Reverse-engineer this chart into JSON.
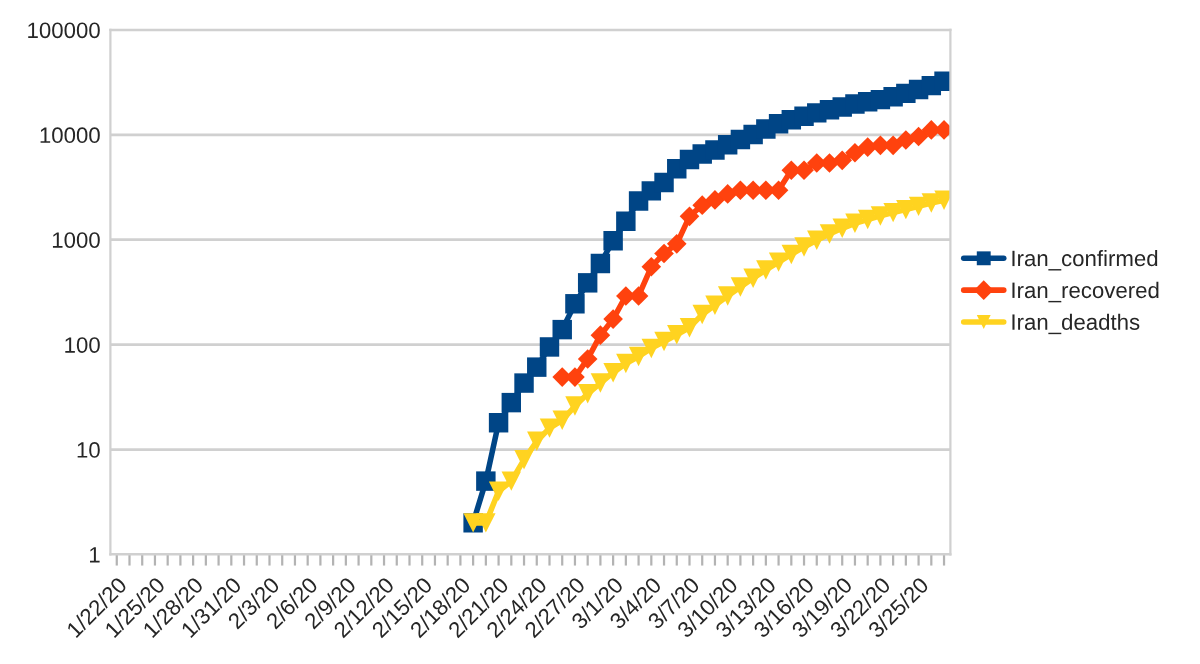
{
  "chart_data": {
    "type": "line",
    "log": "y",
    "grid": "y",
    "legend": "right",
    "line_style": "solid",
    "categories": [
      "1/22/20",
      null,
      null,
      "1/25/20",
      null,
      null,
      "1/28/20",
      null,
      null,
      "1/31/20",
      null,
      null,
      "2/3/20",
      null,
      null,
      "2/6/20",
      null,
      null,
      "2/9/20",
      null,
      null,
      "2/12/20",
      null,
      null,
      "2/15/20",
      null,
      null,
      "2/18/20",
      null,
      null,
      "2/21/20",
      null,
      null,
      "2/24/20",
      null,
      null,
      "2/27/20",
      null,
      null,
      "3/1/20",
      null,
      null,
      "3/4/20",
      null,
      null,
      "3/7/20",
      null,
      null,
      "3/10/20",
      null,
      null,
      "3/13/20",
      null,
      null,
      "3/16/20",
      null,
      null,
      "3/19/20",
      null,
      null,
      "3/22/20",
      null,
      null,
      "3/25/20",
      null,
      null
    ],
    "ylim": [
      1,
      100000
    ],
    "yticks": [
      1,
      10,
      100,
      1000,
      10000,
      100000
    ],
    "series": [
      {
        "name": "Iran_confirmed",
        "color": "#004586",
        "marker": "square",
        "values": [
          null,
          null,
          null,
          null,
          null,
          null,
          null,
          null,
          null,
          null,
          null,
          null,
          null,
          null,
          null,
          null,
          null,
          null,
          null,
          null,
          null,
          null,
          null,
          null,
          null,
          null,
          null,
          null,
          2,
          5,
          18,
          28,
          43,
          61,
          95,
          139,
          245,
          388,
          593,
          978,
          1501,
          2336,
          2922,
          3513,
          4747,
          5823,
          6566,
          7161,
          8042,
          9000,
          10075,
          11364,
          12729,
          13938,
          14991,
          16169,
          17361,
          18407,
          19644,
          20610,
          21638,
          23049,
          24811,
          27017,
          29406,
          32332
        ]
      },
      {
        "name": "Iran_recovered",
        "color": "#ff420e",
        "marker": "diamond",
        "values": [
          null,
          null,
          null,
          null,
          null,
          null,
          null,
          null,
          null,
          null,
          null,
          null,
          null,
          null,
          null,
          null,
          null,
          null,
          null,
          null,
          null,
          null,
          null,
          null,
          null,
          null,
          null,
          null,
          null,
          null,
          null,
          null,
          null,
          null,
          null,
          49,
          49,
          73,
          123,
          175,
          291,
          291,
          552,
          739,
          913,
          1669,
          2134,
          2394,
          2731,
          2959,
          2959,
          2959,
          2959,
          4590,
          4590,
          5389,
          5389,
          5710,
          6745,
          7635,
          7931,
          7931,
          8913,
          9625,
          11133,
          11133
        ]
      },
      {
        "name": "Iran_deadths",
        "color": "#ffd320",
        "marker": "triangle",
        "values": [
          null,
          null,
          null,
          null,
          null,
          null,
          null,
          null,
          null,
          null,
          null,
          null,
          null,
          null,
          null,
          null,
          null,
          null,
          null,
          null,
          null,
          null,
          null,
          null,
          null,
          null,
          null,
          null,
          2,
          2,
          4,
          5,
          8,
          12,
          16,
          19,
          26,
          34,
          43,
          54,
          66,
          77,
          92,
          107,
          124,
          145,
          194,
          237,
          291,
          354,
          429,
          514,
          611,
          724,
          853,
          988,
          1135,
          1284,
          1433,
          1556,
          1685,
          1812,
          1934,
          2077,
          2234,
          2378
        ]
      }
    ]
  }
}
